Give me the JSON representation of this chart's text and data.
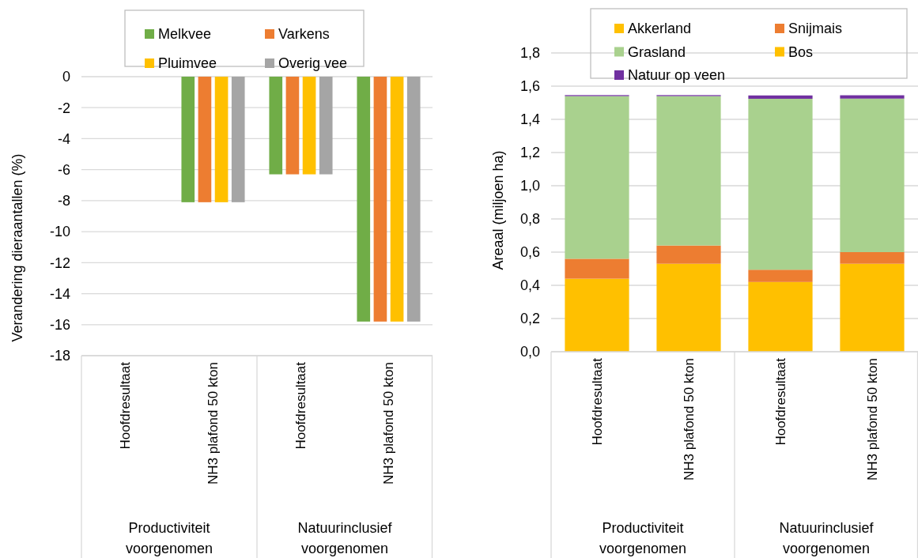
{
  "chart_data": [
    {
      "type": "bar",
      "categories": [
        "Hoofdresultaat",
        "NH3 plafond 50 kton",
        "Hoofdresultaat",
        "NH3 plafond 50 kton"
      ],
      "annotations": [
        "Productiviteit voorgenomen",
        "Natuurinclusief voorgenomen"
      ],
      "ylabel": "Verandering dieraantallen (%)",
      "ylim": [
        -18,
        0
      ],
      "yticks": [
        -18,
        -16,
        -14,
        -12,
        -10,
        -8,
        -6,
        -4,
        -2,
        0
      ],
      "grid": "y",
      "legend": "top",
      "series": [
        {
          "name": "Melkvee",
          "color": "#70ad47",
          "values": [
            0,
            -8.1,
            -6.3,
            -15.8
          ]
        },
        {
          "name": "Varkens",
          "color": "#ed7d31",
          "values": [
            0,
            -8.1,
            -6.3,
            -15.8
          ]
        },
        {
          "name": "Pluimvee",
          "color": "#ffc000",
          "values": [
            0,
            -8.1,
            -6.3,
            -15.8
          ]
        },
        {
          "name": "Overig vee",
          "color": "#a5a5a5",
          "values": [
            0,
            -8.1,
            -6.3,
            -15.8
          ]
        }
      ]
    },
    {
      "type": "bar",
      "stacked": true,
      "categories": [
        "Hoofdresultaat",
        "NH3 plafond 50 kton",
        "Hoofdresultaat",
        "NH3 plafond 50 kton"
      ],
      "annotations": [
        "Productiviteit voorgenomen",
        "Natuurinclusief voorgenomen"
      ],
      "ylabel": "Areaal (miljoen ha)",
      "ylim": [
        0,
        1.8
      ],
      "yticks": [
        {
          "value": 0,
          "label": "0,0"
        },
        {
          "value": 0.2,
          "label": "0,2"
        },
        {
          "value": 0.4,
          "label": "0,4"
        },
        {
          "value": 0.6,
          "label": "0,6"
        },
        {
          "value": 0.8,
          "label": "0,8"
        },
        {
          "value": 1.0,
          "label": "1,0"
        },
        {
          "value": 1.2,
          "label": "1,2"
        },
        {
          "value": 1.4,
          "label": "1,4"
        },
        {
          "value": 1.6,
          "label": "1,6"
        },
        {
          "value": 1.8,
          "label": "1,8"
        }
      ],
      "grid": "y",
      "legend": "top",
      "series": [
        {
          "name": "Akkerland",
          "color": "#ffc000",
          "values": [
            0.44,
            0.53,
            0.42,
            0.53
          ]
        },
        {
          "name": "Snijmais",
          "color": "#ed7d31",
          "values": [
            0.12,
            0.11,
            0.074,
            0.07
          ]
        },
        {
          "name": "Grasland",
          "color": "#a9d18e",
          "values": [
            0.98,
            0.9,
            1.03,
            0.925
          ]
        },
        {
          "name": "Bos",
          "color": "#ffc000",
          "values": [
            0,
            0,
            0,
            0
          ]
        },
        {
          "name": "Natuur op veen",
          "color": "#7030a0",
          "values": [
            0.006,
            0.006,
            0.02,
            0.02
          ]
        }
      ]
    }
  ]
}
